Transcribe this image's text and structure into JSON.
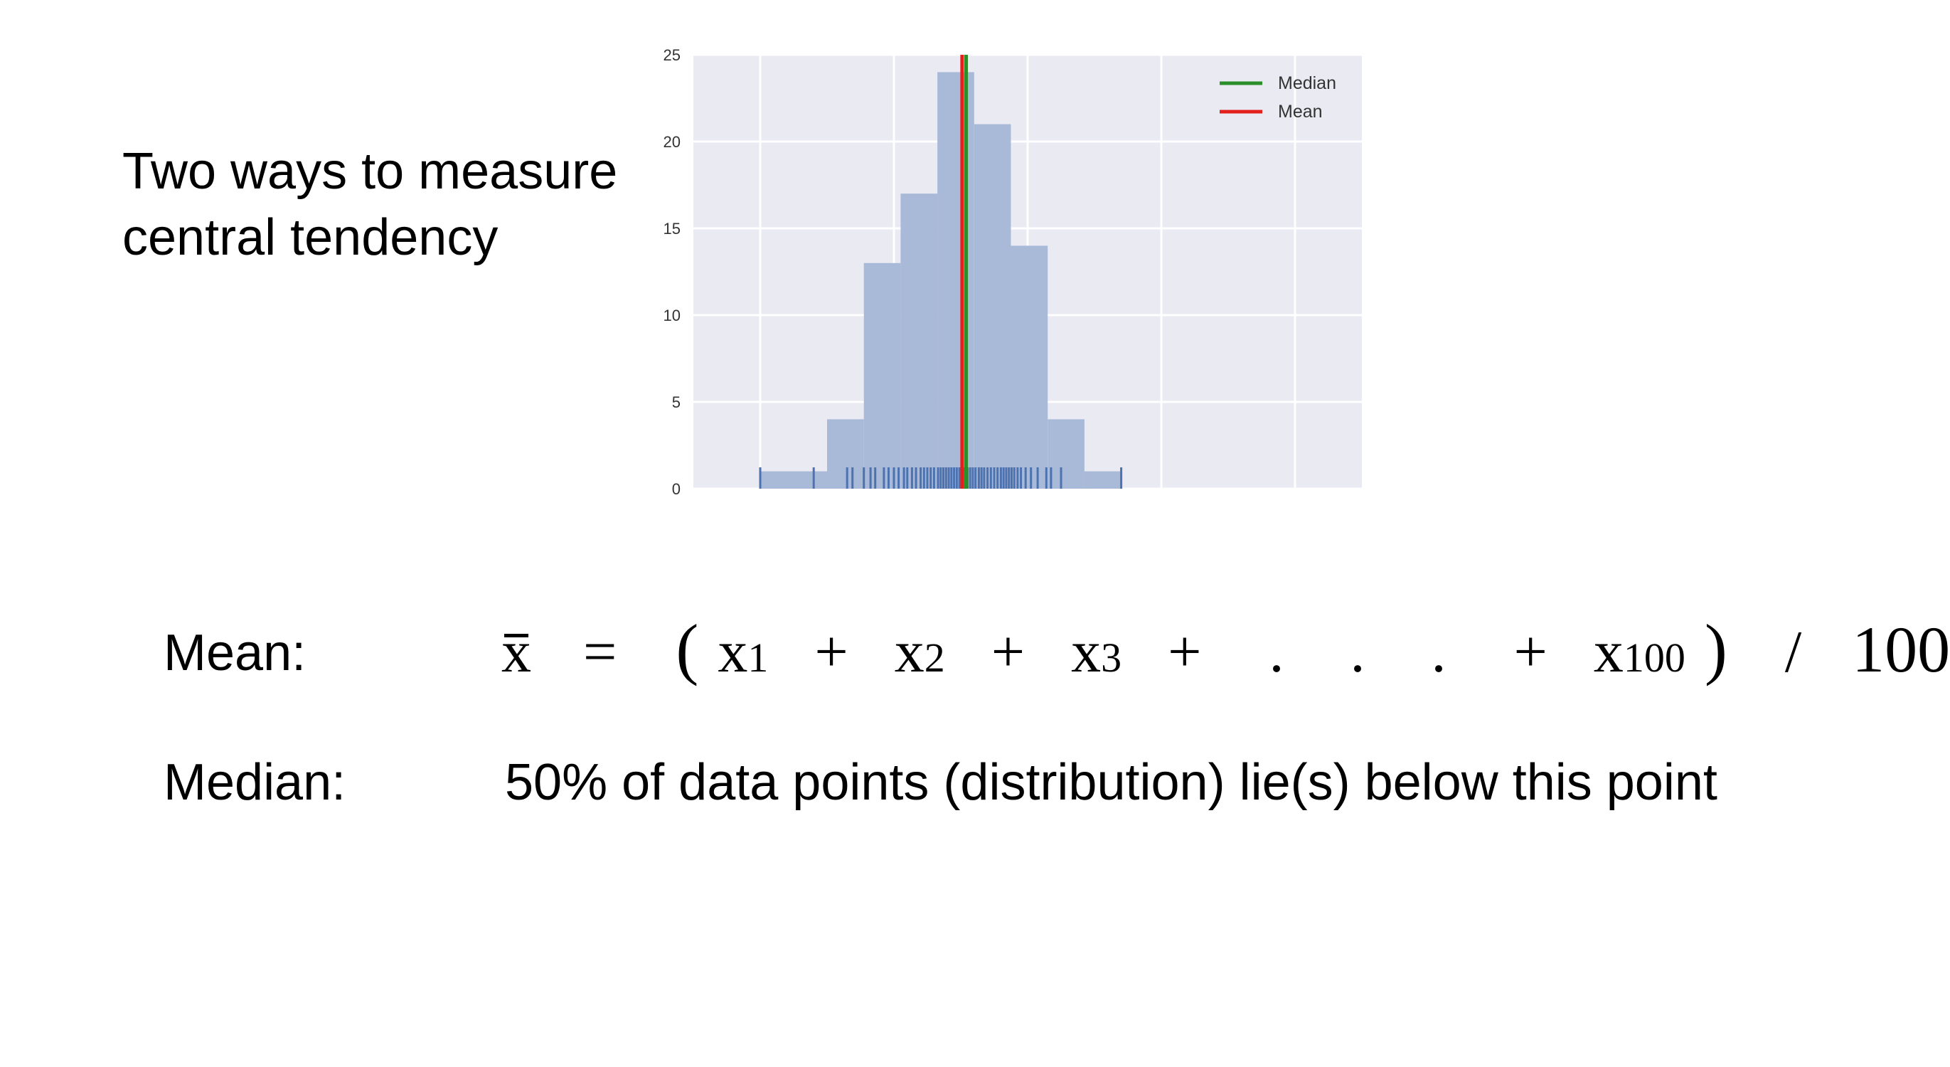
{
  "title": {
    "line1": "Two ways to measure",
    "line2": "central tendency"
  },
  "chart_data": {
    "type": "bar",
    "title": "",
    "xlabel": "",
    "ylabel": "",
    "ylim": [
      0,
      25
    ],
    "yticks": [
      "0",
      "5",
      "10",
      "15",
      "20",
      "25"
    ],
    "xticks_shown": false,
    "grid": true,
    "background": "#eaeaf2",
    "bar_color": "#a9b9d8",
    "rug_color": "#4c72b0",
    "bins": [
      {
        "x0": 1.0,
        "x1": 2.0,
        "count": 1
      },
      {
        "x0": 2.0,
        "x1": 2.55,
        "count": 4
      },
      {
        "x0": 2.55,
        "x1": 3.1,
        "count": 13
      },
      {
        "x0": 3.1,
        "x1": 3.65,
        "count": 17
      },
      {
        "x0": 3.65,
        "x1": 4.2,
        "count": 24
      },
      {
        "x0": 4.2,
        "x1": 4.75,
        "count": 21
      },
      {
        "x0": 4.75,
        "x1": 5.3,
        "count": 14
      },
      {
        "x0": 5.3,
        "x1": 5.85,
        "count": 4
      },
      {
        "x0": 5.85,
        "x1": 6.4,
        "count": 1
      }
    ],
    "xlim": [
      0,
      10
    ],
    "vlines": [
      {
        "name": "Median",
        "x": 4.08,
        "color": "#2a8f2a"
      },
      {
        "name": "Mean",
        "x": 4.02,
        "color": "#e3201b"
      }
    ],
    "legend": {
      "position": "top-right",
      "entries": [
        {
          "label": "Median",
          "color": "#2a8f2a"
        },
        {
          "label": "Mean",
          "color": "#e3201b"
        }
      ]
    },
    "rug": [
      1.0,
      1.8,
      2.3,
      2.38,
      2.55,
      2.65,
      2.72,
      2.85,
      2.92,
      3.0,
      3.07,
      3.15,
      3.2,
      3.27,
      3.33,
      3.4,
      3.45,
      3.5,
      3.55,
      3.6,
      3.66,
      3.7,
      3.74,
      3.78,
      3.82,
      3.86,
      3.9,
      3.94,
      3.98,
      4.02,
      4.06,
      4.1,
      4.14,
      4.18,
      4.22,
      4.27,
      4.31,
      4.35,
      4.4,
      4.45,
      4.5,
      4.55,
      4.6,
      4.64,
      4.68,
      4.72,
      4.76,
      4.8,
      4.85,
      4.9,
      4.97,
      5.05,
      5.15,
      5.28,
      5.35,
      5.5,
      6.4
    ]
  },
  "mean": {
    "label": "Mean:",
    "formula": {
      "xbar": "x",
      "equals": "=",
      "open": "(",
      "x": "x",
      "sub1": "1",
      "sub2": "2",
      "sub3": "3",
      "sub100": "100",
      "plus": "+",
      "dot": ".",
      "close": ")",
      "slash": "/",
      "divisor": "100"
    }
  },
  "median": {
    "label": "Median:",
    "description": "50% of data points (distribution) lie(s) below this point"
  }
}
